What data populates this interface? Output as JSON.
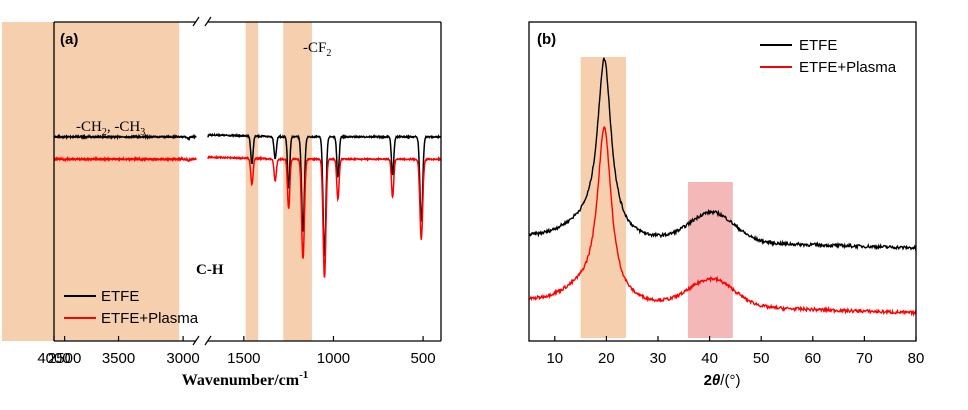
{
  "chart_data": [
    {
      "panel_label": "(a)",
      "type": "line",
      "xlabel": "Wavenumber/cm",
      "xlabel_sup": "-1",
      "x_reversed": true,
      "x_axis_break": [
        2900,
        1700
      ],
      "xlim": [
        4000,
        400
      ],
      "xticks": [
        4000,
        3500,
        3000,
        2500,
        1500,
        1000,
        500
      ],
      "xtick_labels": [
        "4000",
        "3500",
        "3000",
        "2500",
        "1500",
        "1000",
        "500"
      ],
      "y_ticks": "none",
      "legend": {
        "position": "bottom-left",
        "entries": [
          "ETFE",
          "ETFE+Plasma"
        ]
      },
      "highlight_bands": [
        {
          "x": [
            3030,
            2850
          ],
          "color": "#f6cfae"
        },
        {
          "x": [
            1490,
            1420
          ],
          "color": "#f6cfae"
        },
        {
          "x": [
            1280,
            1120
          ],
          "color": "#f6cfae"
        }
      ],
      "annotations": [
        {
          "text": "-CF",
          "sub": "2"
        },
        {
          "text": "-CH",
          "sub": "2",
          "text2": ", -CH",
          "sub2": "3"
        },
        {
          "text": "C-H"
        }
      ],
      "baseline_percent": {
        "ETFE": 64,
        "ETFE+Plasma": 57
      },
      "series": [
        {
          "name": "ETFE",
          "color": "#000000",
          "peaks": [
            {
              "x": 2960,
              "depth": 2
            },
            {
              "x": 2880,
              "depth": 1.5
            },
            {
              "x": 1455,
              "depth": 28
            },
            {
              "x": 1325,
              "depth": 22
            },
            {
              "x": 1250,
              "depth": 52
            },
            {
              "x": 1170,
              "depth": 95
            },
            {
              "x": 1050,
              "depth": 120
            },
            {
              "x": 975,
              "depth": 40
            },
            {
              "x": 670,
              "depth": 38
            },
            {
              "x": 510,
              "depth": 85
            }
          ]
        },
        {
          "name": "ETFE+Plasma",
          "color": "#ff0000",
          "peaks": [
            {
              "x": 2960,
              "depth": 1.5
            },
            {
              "x": 2880,
              "depth": 1
            },
            {
              "x": 1455,
              "depth": 26
            },
            {
              "x": 1325,
              "depth": 22
            },
            {
              "x": 1250,
              "depth": 50
            },
            {
              "x": 1170,
              "depth": 100
            },
            {
              "x": 1050,
              "depth": 118
            },
            {
              "x": 975,
              "depth": 40
            },
            {
              "x": 670,
              "depth": 38
            },
            {
              "x": 510,
              "depth": 80
            }
          ]
        }
      ]
    },
    {
      "panel_label": "(b)",
      "type": "line",
      "xlabel_prefix": "2",
      "xlabel_italic": "θ",
      "xlabel_suffix": "/(°)",
      "xlim": [
        5,
        80
      ],
      "xticks": [
        10,
        20,
        30,
        40,
        50,
        60,
        70,
        80
      ],
      "xtick_labels": [
        "10",
        "20",
        "30",
        "40",
        "50",
        "60",
        "70",
        "80"
      ],
      "y_ticks": "none",
      "legend": {
        "position": "top-right",
        "entries": [
          "ETFE",
          "ETFE+Plasma"
        ]
      },
      "highlight_bands": [
        {
          "x": [
            15,
            23.8
          ],
          "color": "#f6cfae"
        },
        {
          "x": [
            35.8,
            44.5
          ],
          "color": "#f4b8b8"
        }
      ],
      "series": [
        {
          "name": "ETFE",
          "color": "#000000",
          "baseline_start": 104,
          "baseline_end": 93,
          "peaks": [
            {
              "x": 19.6,
              "height": 172,
              "width": 1.6
            },
            {
              "x": 40.5,
              "height": 29,
              "width": 6
            }
          ]
        },
        {
          "name": "ETFE+Plasma",
          "color": "#ff0000",
          "baseline_start": 40,
          "baseline_end": 28,
          "peaks": [
            {
              "x": 19.6,
              "height": 168,
              "width": 1.6
            },
            {
              "x": 40.5,
              "height": 27,
              "width": 6
            }
          ]
        }
      ]
    }
  ]
}
